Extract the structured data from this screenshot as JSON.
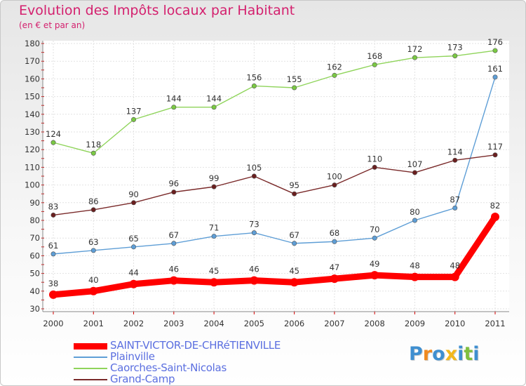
{
  "title": "Evolution des Impôts locaux par Habitant",
  "subtitle": "(en € et par an)",
  "logo": {
    "letters": [
      "P",
      "r",
      "o",
      "x",
      "i",
      "t",
      "i"
    ],
    "colors": [
      "#3f8fd0",
      "#f08a20",
      "#3f8fd0",
      "#f3b81d",
      "#3f8fd0",
      "#7fbf3f",
      "#3f8fd0"
    ]
  },
  "chart_data": {
    "type": "line",
    "x": [
      "2000",
      "2001",
      "2002",
      "2003",
      "2004",
      "2005",
      "2006",
      "2007",
      "2008",
      "2009",
      "2010",
      "2011"
    ],
    "ylim": [
      30,
      180
    ],
    "yticks": [
      30,
      40,
      50,
      60,
      70,
      80,
      90,
      100,
      110,
      120,
      130,
      140,
      150,
      160,
      170,
      180
    ],
    "grid": true,
    "legend_position": "bottom-left",
    "series": [
      {
        "name": "SAINT-VICTOR-DE-CHRéTIENVILLE",
        "color": "#ff0000",
        "marker": "#ff0000",
        "label_color": "#333333",
        "legend_text_color": "#5b6fe0",
        "width": "heavy",
        "values": [
          38,
          40,
          44,
          46,
          45,
          46,
          45,
          47,
          49,
          48,
          48,
          82
        ]
      },
      {
        "name": "Plainville",
        "color": "#5e9ed6",
        "marker": "#5e9ed6",
        "label_color": "#333333",
        "legend_text_color": "#5b6fe0",
        "width": "thin",
        "values": [
          61,
          63,
          65,
          67,
          71,
          73,
          67,
          68,
          70,
          80,
          87,
          161
        ]
      },
      {
        "name": "Caorches-Saint-Nicolas",
        "color": "#8fd45a",
        "marker": "#7ac943",
        "label_color": "#333333",
        "legend_text_color": "#5b6fe0",
        "width": "thin",
        "values": [
          124,
          118,
          137,
          144,
          144,
          156,
          155,
          162,
          168,
          172,
          173,
          176
        ]
      },
      {
        "name": "Grand-Camp",
        "color": "#7a2a2a",
        "marker": "#6a1f1f",
        "label_color": "#333333",
        "legend_text_color": "#5b6fe0",
        "width": "thin",
        "values": [
          83,
          86,
          90,
          96,
          99,
          105,
          95,
          100,
          110,
          107,
          114,
          117
        ]
      }
    ]
  }
}
